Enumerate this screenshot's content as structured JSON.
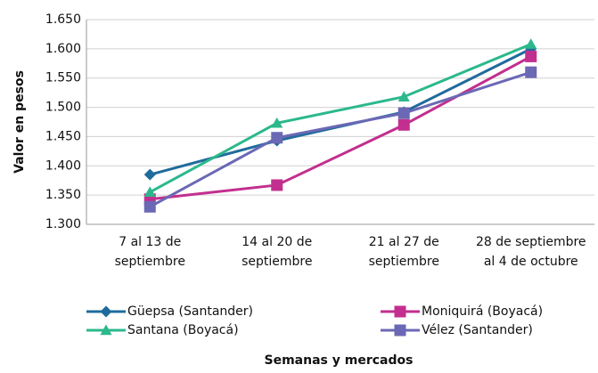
{
  "chart_data": {
    "type": "line",
    "y_label": "Valor en pesos",
    "x_label": "Semanas y mercados",
    "categories": [
      [
        "7 al 13 de",
        "septiembre"
      ],
      [
        "14 al 20 de",
        "septiembre"
      ],
      [
        "21 al 27 de",
        "septiembre"
      ],
      [
        "28 de septiembre",
        "al 4 de octubre"
      ]
    ],
    "series": [
      {
        "name": "Güepsa (Santander)",
        "color": "#1f6b9c",
        "marker": "diamond",
        "values": [
          1385,
          1443,
          1492,
          1600
        ]
      },
      {
        "name": "Moniquirá (Boyacá)",
        "color": "#c22f8e",
        "marker": "square",
        "values": [
          1343,
          1367,
          1470,
          1587
        ]
      },
      {
        "name": "Santana (Boyacá)",
        "color": "#2bb88c",
        "marker": "triangle",
        "values": [
          1355,
          1473,
          1518,
          1608
        ]
      },
      {
        "name": "Vélez (Santander)",
        "color": "#6b68b5",
        "marker": "square",
        "values": [
          1330,
          1448,
          1490,
          1560
        ]
      }
    ],
    "ylim": [
      1300,
      1650
    ],
    "yticks": [
      {
        "value": 1300,
        "label": "1.300"
      },
      {
        "value": 1350,
        "label": "1.350"
      },
      {
        "value": 1400,
        "label": "1.400"
      },
      {
        "value": 1450,
        "label": "1.450"
      },
      {
        "value": 1500,
        "label": "1.500"
      },
      {
        "value": 1550,
        "label": "1.550"
      },
      {
        "value": 1600,
        "label": "1.600"
      },
      {
        "value": 1650,
        "label": "1.650"
      }
    ],
    "grid": true
  }
}
